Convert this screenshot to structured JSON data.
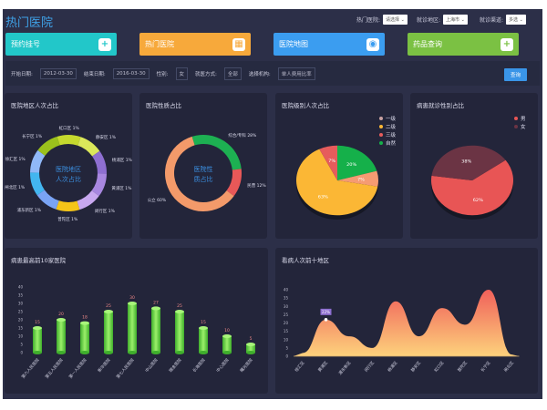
{
  "header": {
    "title": "热门医院",
    "selects": [
      {
        "label": "热门医院:",
        "value": "请选择"
      },
      {
        "label": "就诊地区:",
        "value": "上海市"
      },
      {
        "label": "就诊渠道:",
        "value": "多选"
      }
    ]
  },
  "cards": [
    {
      "label": "预约挂号",
      "color": "#22c7c9",
      "icon": "+"
    },
    {
      "label": "热门医院",
      "color": "#f7a93b",
      "icon": "▦"
    },
    {
      "label": "医院地图",
      "color": "#3b9df0",
      "icon": "◉"
    },
    {
      "label": "药品查询",
      "color": "#7bc143",
      "icon": "+"
    }
  ],
  "filter": {
    "start_label": "开始日期:",
    "start": "2012-03-30",
    "end_label": "结束日期:",
    "end": "2016-03-30",
    "gender_label": "性别:",
    "gender": "女",
    "mode_label": "就医方式:",
    "mode": "全部",
    "org_label": "选择机构:",
    "org": "单人费用比率",
    "query": "查询"
  },
  "chart_data": [
    {
      "type": "pie",
      "title": "医院地区人次占比",
      "center": "医院地区人次占比",
      "labels": [
        "虹口区 1%",
        "静安区 1%",
        "杨浦区 1%",
        "黄浦区 1%",
        "闵行区 1%",
        "普陀区 1%",
        "浦东新区 1%",
        "闸北区 1%",
        "徐汇区 1%",
        "长宁区 1%"
      ],
      "values": [
        1,
        1,
        1,
        1,
        1,
        1,
        1,
        1,
        1,
        1
      ],
      "colors": [
        "#c5d92e",
        "#dbe85a",
        "#8e6fd1",
        "#a887e0",
        "#c8a8f0",
        "#f5c518",
        "#7aa4f5",
        "#43b6f0",
        "#90b8f8",
        "#9bc11c"
      ]
    },
    {
      "type": "pie",
      "title": "医院性质占比",
      "center": "医院性质占比",
      "labels": [
        "综合/专科 28%",
        "民营 12%",
        "公立 60%"
      ],
      "values": [
        28,
        12,
        60
      ],
      "colors": [
        "#1db052",
        "#e85858",
        "#f39a6a"
      ]
    },
    {
      "type": "pie",
      "title": "医院级别人次占比",
      "legend": [
        "一级",
        "二级",
        "三级",
        "自然"
      ],
      "labels": [
        "20%",
        "7%",
        "63%",
        "7%"
      ],
      "values": [
        20,
        7,
        63,
        7
      ],
      "colors": [
        "#15b04a",
        "#f59b72",
        "#fbb735",
        "#e65c5c"
      ],
      "legend_colors": [
        "#c8a2a2",
        "#fbb735",
        "#e65c5c",
        "#15b04a"
      ]
    },
    {
      "type": "pie",
      "title": "病患就诊性别占比",
      "legend": [
        "男",
        "女"
      ],
      "labels": [
        "62%",
        "38%"
      ],
      "values": [
        62,
        38
      ],
      "colors": [
        "#e85555",
        "#6b3444"
      ]
    },
    {
      "type": "bar",
      "title": "病患最高前10家医院",
      "categories": [
        "第六人民医院",
        "第五人民医院",
        "第一人民医院",
        "新华医院",
        "第七人民医院",
        "中山医院",
        "瑞金医院",
        "长海医院",
        "中心医院",
        "曙光医院"
      ],
      "values": [
        15,
        20,
        18,
        25,
        30,
        27,
        25,
        15,
        10,
        5
      ],
      "ylim": [
        0,
        40
      ],
      "yticks": [
        0,
        5,
        10,
        15,
        20,
        25,
        30,
        35,
        40
      ]
    },
    {
      "type": "area",
      "title": "看病人次前十地区",
      "categories": [
        "徐汇区",
        "黄浦区",
        "浦东新区",
        "闵行区",
        "杨浦区",
        "静安区",
        "虹口区",
        "普陀区",
        "长宁区",
        "闸北区"
      ],
      "values": [
        2,
        22,
        12,
        5,
        33,
        12,
        29,
        19,
        40,
        1
      ],
      "annotation": "22%",
      "ylim": [
        0,
        40
      ],
      "yticks": [
        0,
        5,
        10,
        15,
        20,
        25,
        30,
        35,
        40
      ]
    }
  ]
}
